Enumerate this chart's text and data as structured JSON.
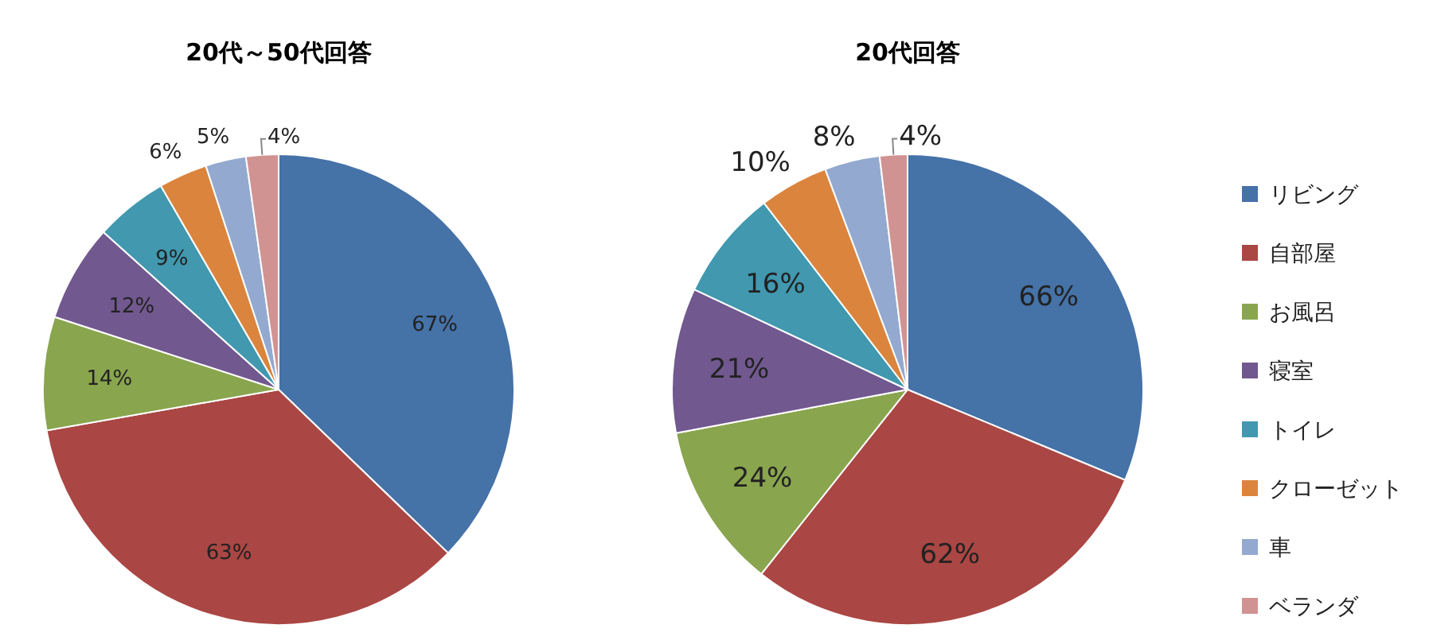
{
  "chart_data": [
    {
      "type": "pie",
      "title": "20代～50代回答",
      "categories": [
        null,
        null,
        null,
        null,
        null,
        null,
        null,
        null
      ],
      "values": [
        67,
        63,
        14,
        12,
        9,
        6,
        5,
        4
      ],
      "value_labels": [
        "67%",
        "63%",
        "14%",
        "12%",
        "9%",
        "6%",
        "5%",
        "4%"
      ],
      "colors": [
        "#4572a7",
        "#aa4643",
        "#89a54e",
        "#71588f",
        "#4198af",
        "#db843d",
        "#93a9cf",
        "#d19392"
      ]
    },
    {
      "type": "pie",
      "title": "20代回答",
      "categories": [
        "リビング",
        "自部屋",
        "お風呂",
        "寝室",
        "トイレ",
        "クローゼット",
        "車",
        "ベランダ"
      ],
      "values": [
        66,
        62,
        24,
        21,
        16,
        10,
        8,
        4
      ],
      "value_labels": [
        "66%",
        "62%",
        "24%",
        "21%",
        "16%",
        "10%",
        "8%",
        "4%"
      ],
      "colors": [
        "#4572a7",
        "#aa4643",
        "#89a54e",
        "#71588f",
        "#4198af",
        "#db843d",
        "#93a9cf",
        "#d19392"
      ],
      "legend": "right"
    }
  ]
}
